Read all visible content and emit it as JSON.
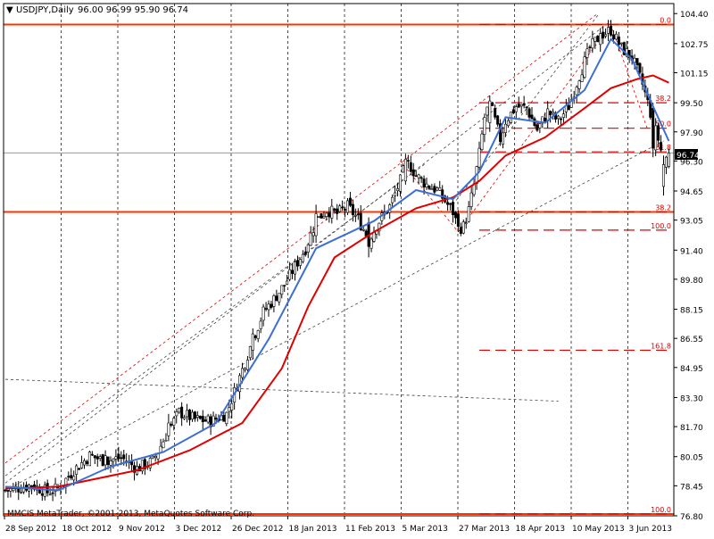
{
  "header": {
    "symbol_timeframe": "USDJPY,Daily",
    "ohlc": "96.00 96.99 95.90 96.74"
  },
  "copyright": "MMCIS MetaTrader, ©2001-2013, MetaQuotes Software Corp.",
  "current_price": "96.74",
  "colors": {
    "background": "#ffffff",
    "frame": "#000000",
    "grid": "#000000",
    "candle_body": "#000000",
    "ma_fast": "#3c6fd2",
    "ma_slow": "#e00000",
    "horizontal_level": "#ff3300",
    "fib_level": "#e00000",
    "fib_label": "#d40000",
    "channel_outer": "#444444",
    "channel_mid": "#e00000",
    "price_box": "#000000"
  },
  "chart_data": {
    "type": "candlestick",
    "ylim": [
      76.8,
      104.95
    ],
    "y_ticks": [
      "104.40",
      "102.75",
      "101.15",
      "99.50",
      "97.90",
      "96.30",
      "94.65",
      "93.05",
      "91.40",
      "89.80",
      "88.15",
      "86.55",
      "84.95",
      "83.30",
      "81.70",
      "80.05",
      "78.45",
      "76.80"
    ],
    "x_ticks": [
      "28 Sep 2012",
      "18 Oct 2012",
      "9 Nov 2012",
      "3 Dec 2012",
      "26 Dec 2012",
      "18 Jan 2013",
      "11 Feb 2013",
      "5 Mar 2013",
      "27 Mar 2013",
      "18 Apr 2013",
      "10 May 2013",
      "3 Jun 2013"
    ],
    "bars": 185,
    "close_path": [
      [
        0,
        78.2
      ],
      [
        4,
        78.3
      ],
      [
        10,
        78.5
      ],
      [
        16,
        78.1
      ],
      [
        20,
        78.3
      ],
      [
        26,
        79.3
      ],
      [
        32,
        80.1
      ],
      [
        38,
        79.8
      ],
      [
        44,
        80.0
      ],
      [
        50,
        79.4
      ],
      [
        56,
        79.8
      ],
      [
        62,
        81.5
      ],
      [
        66,
        82.5
      ],
      [
        72,
        82.1
      ],
      [
        78,
        82.0
      ],
      [
        84,
        82.4
      ],
      [
        88,
        84.0
      ],
      [
        94,
        86.5
      ],
      [
        98,
        88.0
      ],
      [
        102,
        88.7
      ],
      [
        106,
        89.5
      ],
      [
        110,
        90.5
      ],
      [
        114,
        91.5
      ],
      [
        118,
        93.0
      ],
      [
        122,
        93.6
      ],
      [
        126,
        93.4
      ],
      [
        130,
        93.8
      ],
      [
        134,
        93.1
      ],
      [
        138,
        92.0
      ],
      [
        142,
        93.0
      ],
      [
        146,
        93.8
      ],
      [
        150,
        95.2
      ],
      [
        152,
        96.2
      ],
      [
        154,
        96.0
      ],
      [
        156,
        95.5
      ],
      [
        160,
        95.0
      ],
      [
        164,
        94.7
      ],
      [
        168,
        93.9
      ],
      [
        170,
        93.5
      ],
      [
        172,
        92.6
      ],
      [
        174,
        92.7
      ],
      [
        176,
        93.6
      ],
      [
        178,
        95.0
      ],
      [
        180,
        96.7
      ],
      [
        182,
        98.7
      ],
      [
        184,
        99.5
      ],
      [
        186,
        98.5
      ],
      [
        188,
        97.5
      ],
      [
        190,
        98.5
      ],
      [
        194,
        99.3
      ],
      [
        198,
        99.2
      ],
      [
        202,
        98.0
      ],
      [
        206,
        99.0
      ],
      [
        210,
        98.5
      ],
      [
        214,
        99.3
      ],
      [
        218,
        101.0
      ],
      [
        222,
        102.5
      ],
      [
        226,
        103.2
      ],
      [
        230,
        103.5
      ],
      [
        234,
        102.5
      ],
      [
        238,
        102.0
      ],
      [
        242,
        100.5
      ],
      [
        244,
        99.5
      ],
      [
        246,
        98.4
      ],
      [
        248,
        97.5
      ],
      [
        250,
        96.3
      ],
      [
        252,
        96.74
      ]
    ],
    "candles": [
      {
        "i": 38,
        "o": 79.6,
        "h": 80.4,
        "l": 79.3,
        "c": 80.1
      },
      {
        "i": 62,
        "o": 81.2,
        "h": 82.4,
        "l": 80.9,
        "c": 81.9
      },
      {
        "i": 94,
        "o": 85.9,
        "h": 87.1,
        "l": 85.4,
        "c": 86.8
      },
      {
        "i": 118,
        "o": 92.2,
        "h": 93.9,
        "l": 91.8,
        "c": 93.4
      },
      {
        "i": 138,
        "o": 92.9,
        "h": 93.2,
        "l": 91.0,
        "c": 91.6
      },
      {
        "i": 152,
        "o": 95.2,
        "h": 96.7,
        "l": 95.0,
        "c": 96.4
      },
      {
        "i": 172,
        "o": 93.4,
        "h": 93.6,
        "l": 92.4,
        "c": 92.7
      },
      {
        "i": 184,
        "o": 98.4,
        "h": 99.9,
        "l": 97.9,
        "c": 99.6
      },
      {
        "i": 226,
        "o": 102.7,
        "h": 103.6,
        "l": 102.3,
        "c": 103.3
      },
      {
        "i": 246,
        "o": 99.2,
        "h": 99.5,
        "l": 96.5,
        "c": 97.0
      },
      {
        "i": 250,
        "o": 94.9,
        "h": 96.6,
        "l": 94.4,
        "c": 96.1
      },
      {
        "i": 252,
        "o": 96.0,
        "h": 96.99,
        "l": 95.9,
        "c": 96.74
      }
    ],
    "ma_fast": [
      [
        0,
        78.4
      ],
      [
        20,
        78.2
      ],
      [
        40,
        79.5
      ],
      [
        60,
        80.3
      ],
      [
        80,
        81.9
      ],
      [
        100,
        86.5
      ],
      [
        118,
        91.5
      ],
      [
        140,
        93.0
      ],
      [
        156,
        94.7
      ],
      [
        170,
        94.2
      ],
      [
        180,
        95.7
      ],
      [
        190,
        98.7
      ],
      [
        205,
        98.4
      ],
      [
        220,
        100.2
      ],
      [
        230,
        103.0
      ],
      [
        238,
        101.9
      ],
      [
        246,
        99.3
      ],
      [
        252,
        97.4
      ]
    ],
    "ma_slow": [
      [
        0,
        78.3
      ],
      [
        20,
        78.4
      ],
      [
        50,
        79.3
      ],
      [
        70,
        80.4
      ],
      [
        90,
        81.9
      ],
      [
        105,
        84.9
      ],
      [
        115,
        88.3
      ],
      [
        125,
        91.0
      ],
      [
        140,
        92.4
      ],
      [
        156,
        93.7
      ],
      [
        170,
        94.3
      ],
      [
        180,
        95.2
      ],
      [
        190,
        96.6
      ],
      [
        205,
        97.6
      ],
      [
        220,
        99.2
      ],
      [
        230,
        100.3
      ],
      [
        240,
        100.8
      ],
      [
        246,
        101.0
      ],
      [
        252,
        100.6
      ]
    ],
    "horizontal_levels": [
      103.8,
      93.5,
      76.9
    ],
    "fib_levels": [
      {
        "label": "0.0",
        "price": 103.8
      },
      {
        "label": "38.2",
        "price": 99.5
      },
      {
        "label": "50.0",
        "price": 98.1
      },
      {
        "label": "61.8",
        "price": 96.8
      },
      {
        "label": "38.2",
        "price": 93.5
      },
      {
        "label": "100.0",
        "price": 92.5
      },
      {
        "label": "161.8",
        "price": 85.9
      },
      {
        "label": "100.0",
        "price": 76.9
      }
    ]
  }
}
